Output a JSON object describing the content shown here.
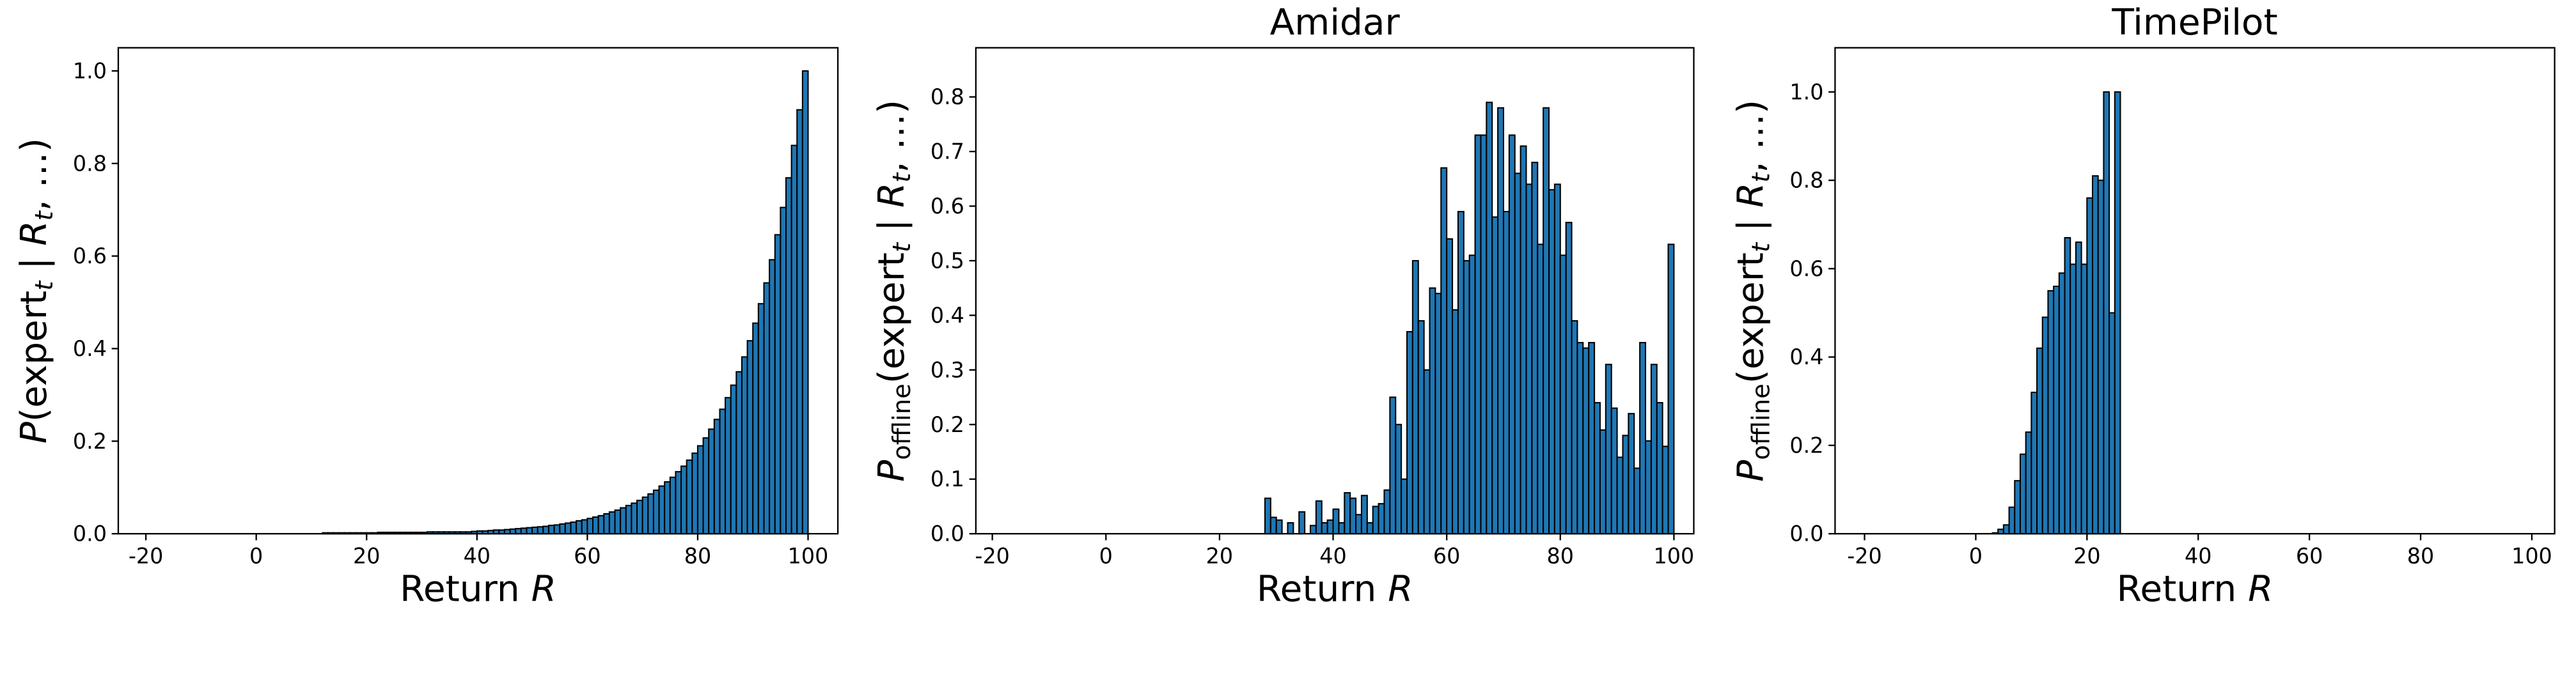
{
  "chart_data": [
    {
      "type": "histogram",
      "xlabel": [
        {
          "text": "Return "
        },
        {
          "text": "R",
          "italic": true
        }
      ],
      "ylabel": [
        {
          "text": "P",
          "italic": true
        },
        {
          "text": "(expert"
        },
        {
          "text": "t",
          "italic": true,
          "sub": true
        },
        {
          "text": " | "
        },
        {
          "text": "R",
          "italic": true
        },
        {
          "text": "t",
          "italic": true,
          "sub": true
        },
        {
          "text": ", …)"
        }
      ],
      "color": "#1f77b4",
      "edgecolor": "#000000",
      "xlim": [
        -25,
        105.4
      ],
      "ylim": [
        0,
        1.05
      ],
      "xticks": [
        -20,
        0,
        20,
        40,
        60,
        80,
        100
      ],
      "yticks": [
        {
          "value": 0,
          "label": "0.0"
        },
        {
          "value": 0.2,
          "label": "0.2"
        },
        {
          "value": 0.4,
          "label": "0.4"
        },
        {
          "value": 0.6,
          "label": "0.6"
        },
        {
          "value": 0.8,
          "label": "0.8"
        },
        {
          "value": 1,
          "label": "1.0"
        }
      ],
      "bins": [
        12,
        13,
        14,
        15,
        16,
        17,
        18,
        19,
        20,
        21,
        22,
        23,
        24,
        25,
        26,
        27,
        28,
        29,
        30,
        31,
        32,
        33,
        34,
        35,
        36,
        37,
        38,
        39,
        40,
        41,
        42,
        43,
        44,
        45,
        46,
        47,
        48,
        49,
        50,
        51,
        52,
        53,
        54,
        55,
        56,
        57,
        58,
        59,
        60,
        61,
        62,
        63,
        64,
        65,
        66,
        67,
        68,
        69,
        70,
        71,
        72,
        73,
        74,
        75,
        76,
        77,
        78,
        79,
        80,
        81,
        82,
        83,
        84,
        85,
        86,
        87,
        88,
        89,
        90,
        91,
        92,
        93,
        94,
        95,
        96,
        97,
        98,
        99,
        100
      ],
      "values": [
        0.002,
        0.002,
        0.002,
        0.002,
        0.002,
        0.002,
        0.002,
        0.002,
        0.002,
        0.002,
        0.003,
        0.003,
        0.003,
        0.003,
        0.003,
        0.003,
        0.003,
        0.003,
        0.003,
        0.004,
        0.004,
        0.004,
        0.004,
        0.004,
        0.004,
        0.004,
        0.004,
        0.005,
        0.006,
        0.006,
        0.007,
        0.008,
        0.008,
        0.009,
        0.01,
        0.011,
        0.012,
        0.013,
        0.014,
        0.015,
        0.016,
        0.018,
        0.019,
        0.021,
        0.023,
        0.025,
        0.028,
        0.03,
        0.033,
        0.036,
        0.039,
        0.043,
        0.047,
        0.051,
        0.056,
        0.061,
        0.066,
        0.072,
        0.079,
        0.086,
        0.094,
        0.103,
        0.112,
        0.122,
        0.134,
        0.146,
        0.159,
        0.174,
        0.19,
        0.207,
        0.226,
        0.247,
        0.269,
        0.294,
        0.321,
        0.35,
        0.382,
        0.417,
        0.455,
        0.497,
        0.542,
        0.592,
        0.646,
        0.705,
        0.769,
        0.839,
        0.916,
        1.0
      ]
    },
    {
      "type": "histogram",
      "title": "Amidar",
      "xlabel": [
        {
          "text": "Return "
        },
        {
          "text": "R",
          "italic": true
        }
      ],
      "ylabel": [
        {
          "text": "P",
          "italic": true
        },
        {
          "text": "offline",
          "sub": true
        },
        {
          "text": "(expert"
        },
        {
          "text": "t",
          "italic": true,
          "sub": true
        },
        {
          "text": " | "
        },
        {
          "text": "R",
          "italic": true
        },
        {
          "text": "t",
          "italic": true,
          "sub": true
        },
        {
          "text": ", …)"
        }
      ],
      "color": "#1f77b4",
      "edgecolor": "#000000",
      "xlim": [
        -22.9,
        103.5
      ],
      "ylim": [
        0,
        0.89
      ],
      "xticks": [
        -20,
        0,
        20,
        40,
        60,
        80,
        100
      ],
      "yticks": [
        {
          "value": 0,
          "label": "0.0"
        },
        0.1,
        0.2,
        0.3,
        0.4,
        0.5,
        0.6,
        0.7,
        0.8
      ],
      "bins": [
        28,
        29,
        30,
        31,
        32,
        33,
        34,
        35,
        36,
        37,
        38,
        39,
        40,
        41,
        42,
        43,
        44,
        45,
        46,
        47,
        48,
        49,
        50,
        51,
        52,
        53,
        54,
        55,
        56,
        57,
        58,
        59,
        60,
        61,
        62,
        63,
        64,
        65,
        66,
        67,
        68,
        69,
        70,
        71,
        72,
        73,
        74,
        75,
        76,
        77,
        78,
        79,
        80,
        81,
        82,
        83,
        84,
        85,
        86,
        87,
        88,
        89,
        90,
        91,
        92,
        93,
        94,
        95,
        96,
        97,
        98,
        99,
        100
      ],
      "values": [
        0.065,
        0.03,
        0.025,
        0,
        0.02,
        0,
        0.04,
        0,
        0.015,
        0.06,
        0.02,
        0.025,
        0.045,
        0.02,
        0.075,
        0.065,
        0.035,
        0.07,
        0.02,
        0.05,
        0.055,
        0.08,
        0.25,
        0.2,
        0.1,
        0.37,
        0.5,
        0.39,
        0.3,
        0.45,
        0.44,
        0.67,
        0.54,
        0.41,
        0.59,
        0.5,
        0.51,
        0.73,
        0.73,
        0.79,
        0.58,
        0.78,
        0.59,
        0.73,
        0.66,
        0.71,
        0.64,
        0.68,
        0.53,
        0.78,
        0.63,
        0.64,
        0.51,
        0.57,
        0.39,
        0.35,
        0.34,
        0.35,
        0.24,
        0.19,
        0.31,
        0.23,
        0.14,
        0.18,
        0.22,
        0.12,
        0.35,
        0.17,
        0.31,
        0.24,
        0.16,
        0.53
      ]
    },
    {
      "type": "histogram",
      "title": "TimePilot",
      "xlabel": [
        {
          "text": "Return "
        },
        {
          "text": "R",
          "italic": true
        }
      ],
      "ylabel": [
        {
          "text": "P",
          "italic": true
        },
        {
          "text": "offline",
          "sub": true
        },
        {
          "text": "(expert"
        },
        {
          "text": "t",
          "italic": true,
          "sub": true
        },
        {
          "text": " | "
        },
        {
          "text": "R",
          "italic": true
        },
        {
          "text": "t",
          "italic": true,
          "sub": true
        },
        {
          "text": ", …)"
        }
      ],
      "color": "#1f77b4",
      "edgecolor": "#000000",
      "xlim": [
        -25.3,
        104.1
      ],
      "ylim": [
        0,
        1.1
      ],
      "xticks": [
        -20,
        0,
        20,
        40,
        60,
        80,
        100
      ],
      "yticks": [
        {
          "value": 0,
          "label": "0.0"
        },
        0.2,
        0.4,
        0.6,
        0.8,
        {
          "value": 1,
          "label": "1.0"
        }
      ],
      "bins": [
        3,
        4,
        5,
        6,
        7,
        8,
        9,
        10,
        11,
        12,
        13,
        14,
        15,
        16,
        17,
        18,
        19,
        20,
        21,
        22,
        23,
        24,
        25,
        26
      ],
      "values": [
        0.002,
        0.01,
        0.02,
        0.06,
        0.12,
        0.18,
        0.23,
        0.32,
        0.42,
        0.49,
        0.55,
        0.56,
        0.59,
        0.67,
        0.61,
        0.66,
        0.61,
        0.76,
        0.81,
        0.8,
        1.0,
        0.5,
        1.0
      ]
    }
  ]
}
